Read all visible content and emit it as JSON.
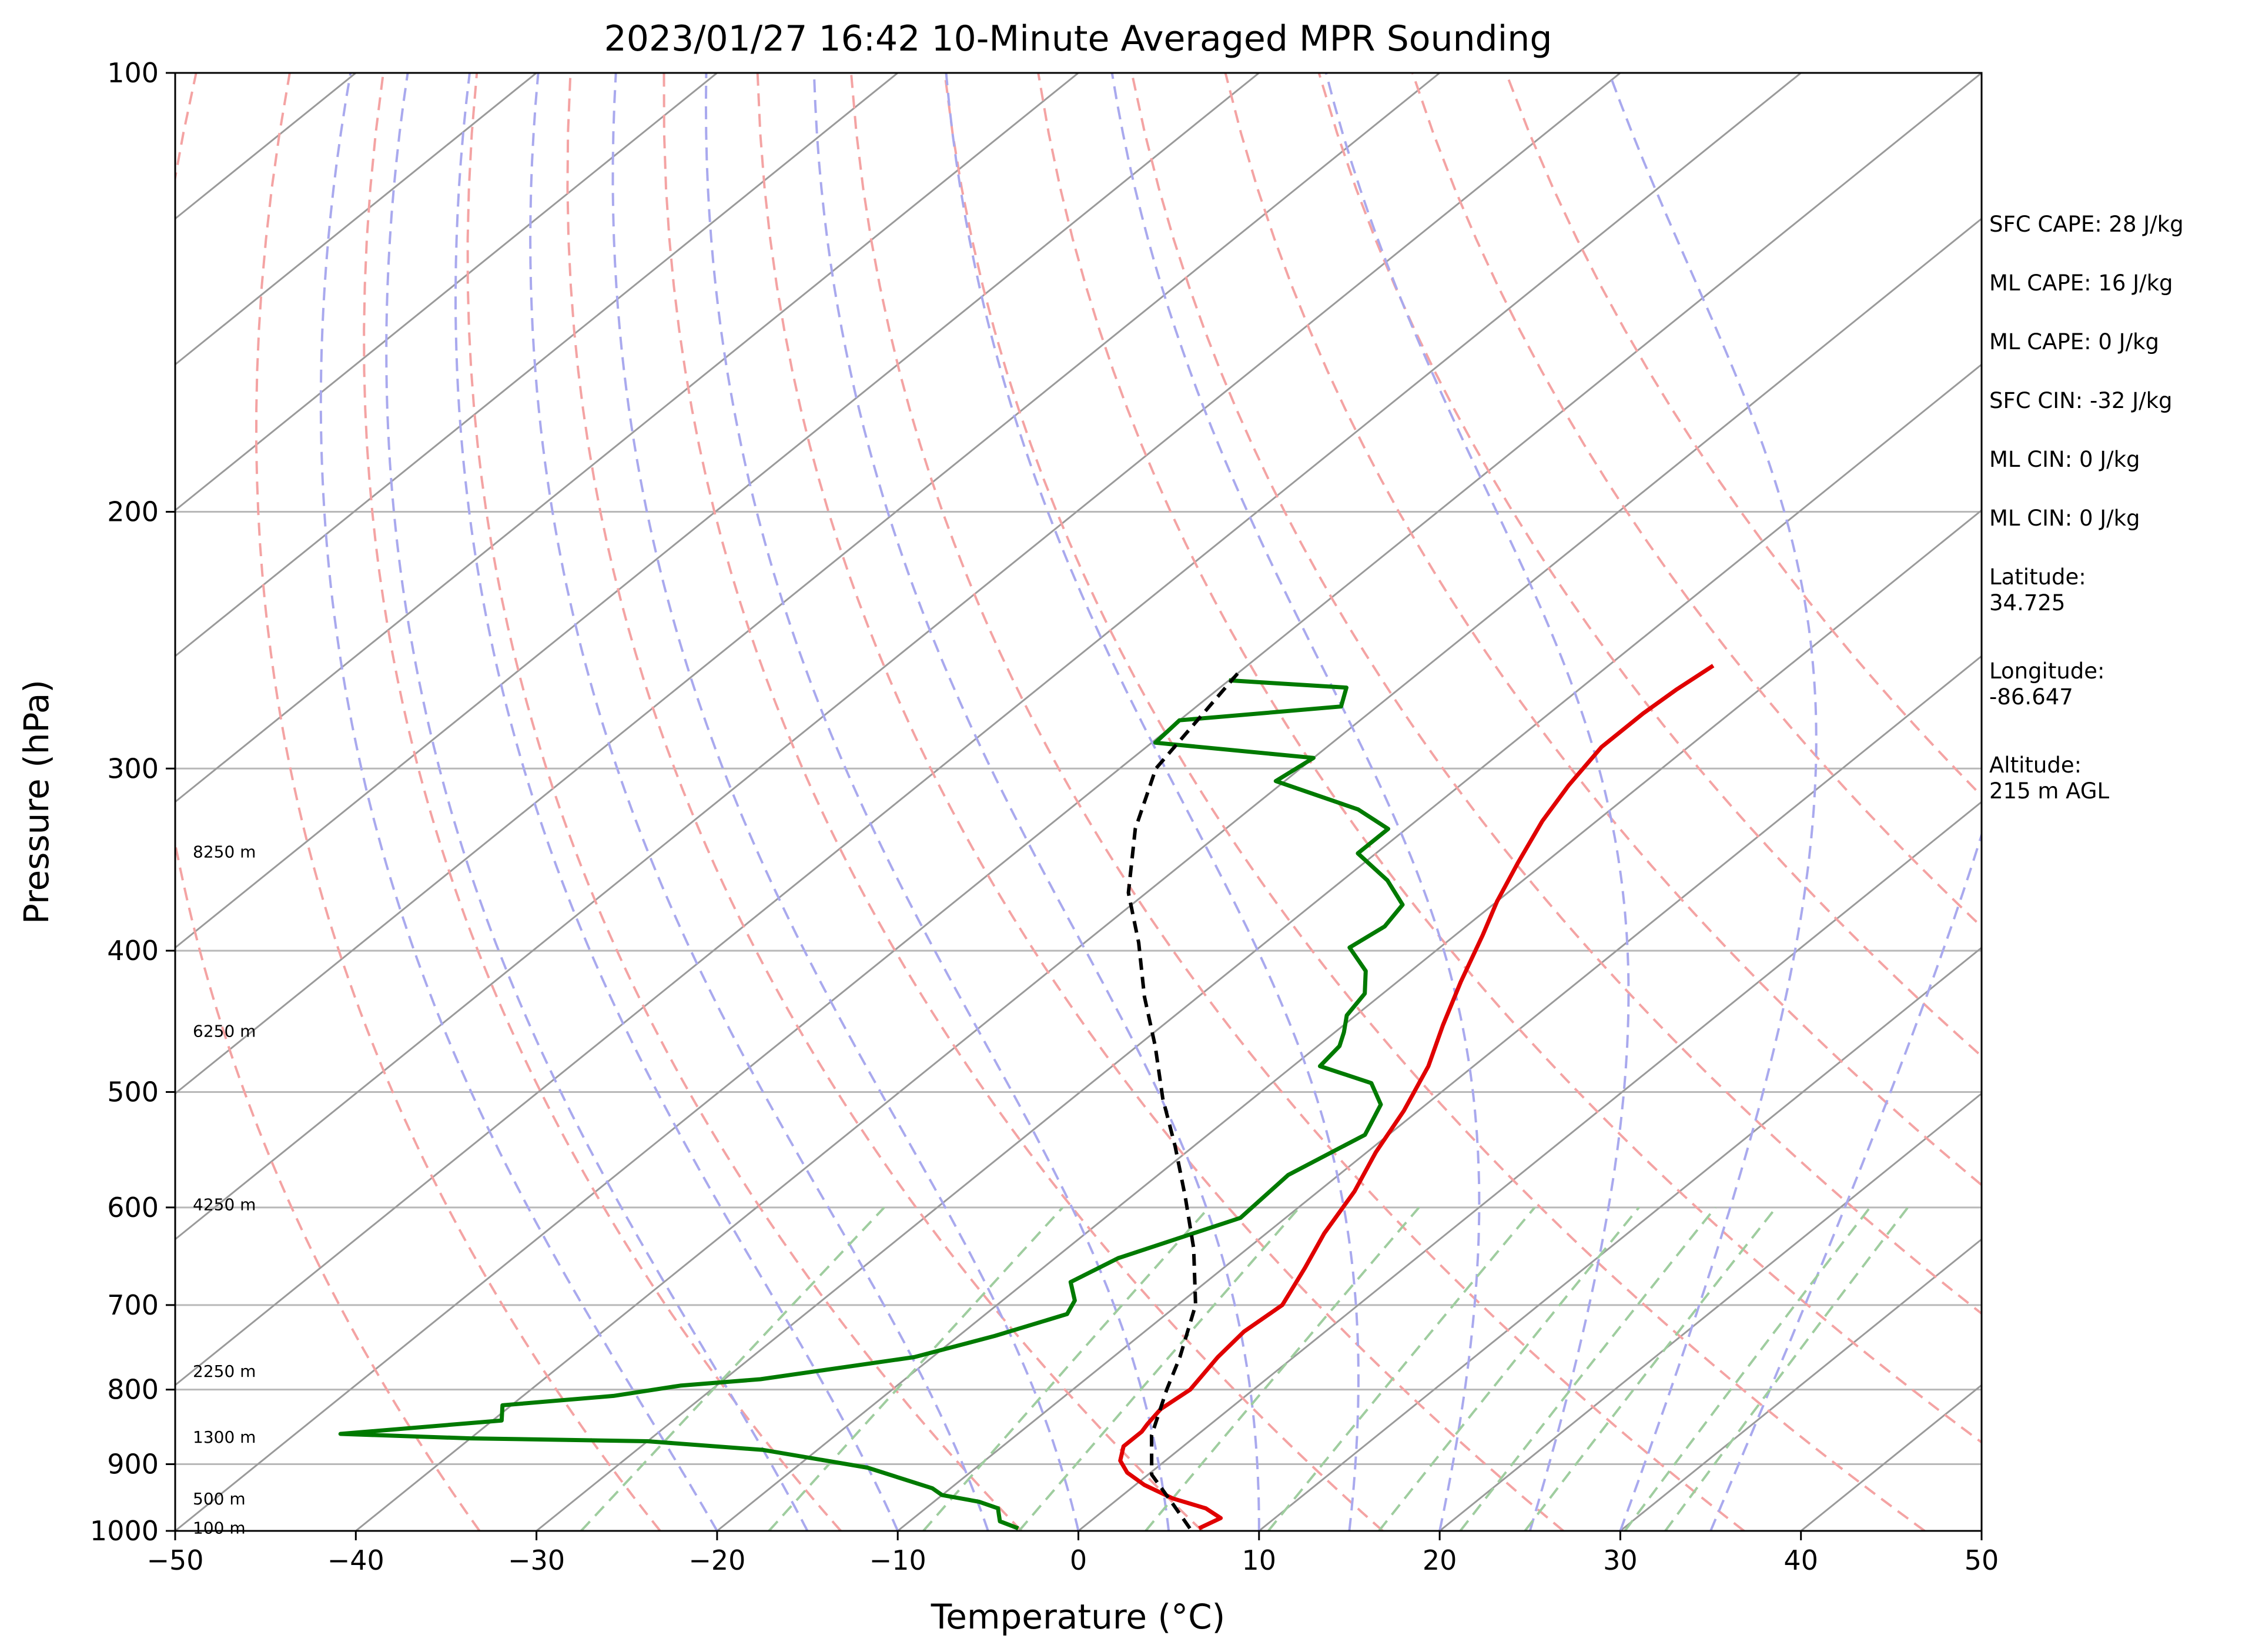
{
  "title": "2023/01/27 16:42 10-Minute Averaged MPR Sounding",
  "xlabel": "Temperature (°C)",
  "ylabel": "Pressure (hPa)",
  "stats": [
    "SFC CAPE: 28 J/kg",
    "ML CAPE: 16 J/kg",
    "ML CAPE: 0 J/kg",
    "SFC CIN: -32 J/kg",
    "ML CIN: 0 J/kg",
    "ML CIN: 0 J/kg"
  ],
  "location": {
    "latitude_label": "Latitude:",
    "latitude": "34.725",
    "longitude_label": "Longitude:",
    "longitude": "-86.647",
    "altitude_label": "Altitude:",
    "altitude": "215 m AGL"
  },
  "chart_data": {
    "type": "line",
    "diagram": "skew-T log-P",
    "xlim": [
      -50,
      50
    ],
    "ylim": [
      1000,
      100
    ],
    "y_scale": "log",
    "x_ticks": [
      "−50",
      "−40",
      "−30",
      "−20",
      "−10",
      "0",
      "10",
      "20",
      "30",
      "40",
      "50"
    ],
    "y_ticks": [
      1000,
      900,
      800,
      700,
      600,
      500,
      400,
      300,
      200,
      100
    ],
    "skew_isotherms_every_C": 10,
    "colors": {
      "temperature": "#e00000",
      "dewpoint": "#007a00",
      "parcel": "#000000",
      "isotherms": "#9a9a9a",
      "dry_adiabats": "#f4a3a3",
      "moist_adiabats": "#a9a9ee",
      "mixing_ratio": "#9fcd9f",
      "grid": "#b8b8b8"
    },
    "dry_adiabat_theta_K": [
      240,
      250,
      260,
      270,
      280,
      290,
      300,
      310,
      320,
      330,
      340,
      350,
      360,
      370,
      380
    ],
    "moist_adiabat_start_C": [
      -20,
      -15,
      -10,
      -5,
      0,
      5,
      10,
      15,
      20,
      25,
      30,
      35
    ],
    "mixing_ratio_g_per_kg": [
      0.4,
      1,
      2,
      3,
      5,
      8,
      12,
      16,
      20,
      28,
      32
    ],
    "height_labels": [
      {
        "label": "100 m",
        "p": 995
      },
      {
        "label": "500 m",
        "p": 950
      },
      {
        "label": "1300 m",
        "p": 862
      },
      {
        "label": "2250 m",
        "p": 777
      },
      {
        "label": "4250 m",
        "p": 597
      },
      {
        "label": "6250 m",
        "p": 454
      },
      {
        "label": "8250 m",
        "p": 342
      }
    ],
    "series": [
      {
        "name": "",
        "kind": "temperature",
        "points": [
          [
            6.5,
            996
          ],
          [
            7.0,
            980
          ],
          [
            5.5,
            965
          ],
          [
            3.0,
            950
          ],
          [
            0.5,
            930
          ],
          [
            -1.3,
            912
          ],
          [
            -2.5,
            895
          ],
          [
            -3.3,
            875
          ],
          [
            -3.3,
            855
          ],
          [
            -3.5,
            845
          ],
          [
            -3.8,
            825
          ],
          [
            -3.5,
            800
          ],
          [
            -4.2,
            760
          ],
          [
            -4.5,
            730
          ],
          [
            -4.2,
            700
          ],
          [
            -5.5,
            660
          ],
          [
            -6.8,
            625
          ],
          [
            -8.0,
            585
          ],
          [
            -9.5,
            550
          ],
          [
            -10.8,
            515
          ],
          [
            -12.5,
            480
          ],
          [
            -14.5,
            450
          ],
          [
            -16.5,
            420
          ],
          [
            -18.5,
            390
          ],
          [
            -20.0,
            370
          ],
          [
            -21.5,
            348
          ],
          [
            -23.0,
            326
          ],
          [
            -24.0,
            308
          ],
          [
            -24.8,
            290
          ],
          [
            -24.8,
            275
          ],
          [
            -24.6,
            265
          ],
          [
            -24.2,
            255
          ]
        ]
      },
      {
        "name": "",
        "kind": "dewpoint",
        "points": [
          [
            -3.5,
            996
          ],
          [
            -5.0,
            985
          ],
          [
            -5.5,
            975
          ],
          [
            -6.0,
            965
          ],
          [
            -7.5,
            955
          ],
          [
            -10.0,
            945
          ],
          [
            -11.0,
            935
          ],
          [
            -16.0,
            905
          ],
          [
            -23.0,
            880
          ],
          [
            -30.0,
            868
          ],
          [
            -40.0,
            864
          ],
          [
            -47.5,
            858
          ],
          [
            -39.5,
            840
          ],
          [
            -40.5,
            820
          ],
          [
            -35.0,
            808
          ],
          [
            -32.0,
            795
          ],
          [
            -28.0,
            787
          ],
          [
            -21.0,
            760
          ],
          [
            -18.0,
            735
          ],
          [
            -15.5,
            710
          ],
          [
            -16.0,
            695
          ],
          [
            -17.5,
            675
          ],
          [
            -16.5,
            650
          ],
          [
            -12.5,
            610
          ],
          [
            -12.8,
            570
          ],
          [
            -11.3,
            535
          ],
          [
            -12.5,
            510
          ],
          [
            -14.5,
            493
          ],
          [
            -18.5,
            480
          ],
          [
            -18.8,
            465
          ],
          [
            -19.5,
            455
          ],
          [
            -20.5,
            443
          ],
          [
            -21.0,
            428
          ],
          [
            -22.5,
            413
          ],
          [
            -25.0,
            398
          ],
          [
            -24.5,
            385
          ],
          [
            -25.0,
            372
          ],
          [
            -27.5,
            358
          ],
          [
            -31.0,
            343
          ],
          [
            -31.0,
            330
          ],
          [
            -34.0,
            320
          ],
          [
            -40.5,
            306
          ],
          [
            -40.0,
            295
          ],
          [
            -49.8,
            288
          ],
          [
            -50.0,
            278
          ],
          [
            -42.0,
            272
          ],
          [
            -43.0,
            264
          ],
          [
            -50.0,
            261
          ]
        ]
      },
      {
        "name": "",
        "kind": "parcel",
        "points": [
          [
            6.0,
            996
          ],
          [
            3.5,
            960
          ],
          [
            0.2,
            915
          ],
          [
            -2.5,
            860
          ],
          [
            -4.8,
            800
          ],
          [
            -6.3,
            760
          ],
          [
            -9.0,
            700
          ],
          [
            -13.0,
            640
          ],
          [
            -17.0,
            590
          ],
          [
            -21.0,
            545
          ],
          [
            -25.0,
            505
          ],
          [
            -29.0,
            465
          ],
          [
            -33.0,
            430
          ],
          [
            -37.0,
            395
          ],
          [
            -41.0,
            365
          ],
          [
            -45.0,
            330
          ],
          [
            -48.0,
            300
          ],
          [
            -50.0,
            258
          ]
        ]
      }
    ]
  }
}
